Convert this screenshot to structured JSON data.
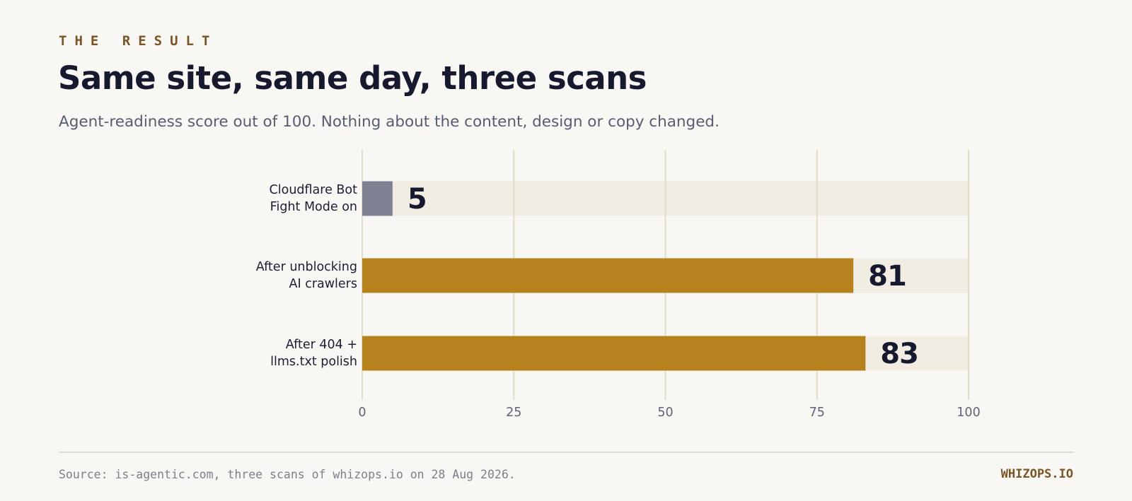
{
  "header": {
    "eyebrow": "THE RESULT",
    "title": "Same site, same day, three scans",
    "subtitle": "Agent-readiness score out of 100. Nothing about the content, design or copy changed."
  },
  "footer": {
    "source": "Source: is-agentic.com, three scans of whizops.io on 28 Aug 2026.",
    "brand": "WHIZOPS.IO"
  },
  "colors": {
    "background": "#f9f7f3",
    "track": "#f2ede3",
    "grid": "#e3dcc9",
    "bar_blocked": "#7f8293",
    "bar_accent": "#b5821e",
    "value_text": "#171a2e",
    "category_text": "#1c1f33",
    "tick_text": "#5f6475"
  },
  "chart_data": {
    "type": "bar",
    "orientation": "horizontal",
    "categories": [
      [
        "Cloudflare Bot",
        "Fight Mode on"
      ],
      [
        "After unblocking",
        "AI crawlers"
      ],
      [
        "After 404 +",
        "llms.txt polish"
      ]
    ],
    "values": [
      5,
      81,
      83
    ],
    "value_labels": [
      "5",
      "81",
      "83"
    ],
    "bar_colors": [
      "#7f8293",
      "#b5821e",
      "#b5821e"
    ],
    "xlim": [
      0,
      100
    ],
    "xticks": [
      0,
      25,
      50,
      75,
      100
    ],
    "xtick_labels": [
      "0",
      "25",
      "50",
      "75",
      "100"
    ],
    "grid": true
  }
}
